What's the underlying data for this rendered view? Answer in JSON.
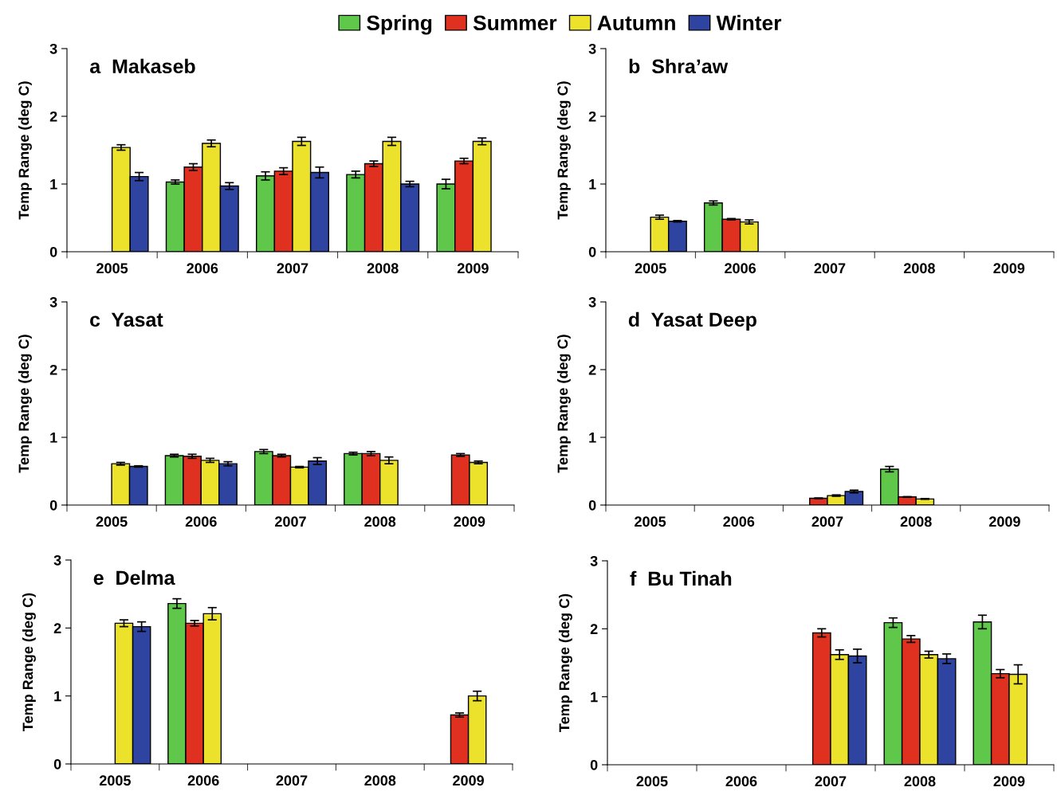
{
  "chart_data": [
    {
      "type": "bar",
      "title": "a  Makaseb",
      "ylabel": "Temp Range (deg C)",
      "legend": "top",
      "categories": [
        "2005",
        "2006",
        "2007",
        "2008",
        "2009"
      ],
      "ylim": [
        0,
        3
      ],
      "yticks": [
        0,
        1,
        2,
        3
      ],
      "series": [
        {
          "name": "Spring",
          "color": "#5fc84a",
          "values": [
            null,
            1.03,
            1.12,
            1.14,
            1.0
          ],
          "errors": [
            null,
            0.03,
            0.06,
            0.05,
            0.07
          ]
        },
        {
          "name": "Summer",
          "color": "#e03020",
          "values": [
            null,
            1.25,
            1.19,
            1.3,
            1.34
          ],
          "errors": [
            null,
            0.05,
            0.05,
            0.04,
            0.04
          ]
        },
        {
          "name": "Autumn",
          "color": "#ece22c",
          "values": [
            1.54,
            1.6,
            1.63,
            1.63,
            1.63
          ],
          "errors": [
            0.04,
            0.05,
            0.06,
            0.06,
            0.05
          ]
        },
        {
          "name": "Winter",
          "color": "#2e44a0",
          "values": [
            1.11,
            0.97,
            1.17,
            1.0,
            null
          ],
          "errors": [
            0.06,
            0.05,
            0.08,
            0.04,
            null
          ]
        }
      ]
    },
    {
      "type": "bar",
      "title": "b  Shra’aw",
      "ylabel": "Temp Range (deg C)",
      "categories": [
        "2005",
        "2006",
        "2007",
        "2008",
        "2009"
      ],
      "ylim": [
        0,
        3
      ],
      "yticks": [
        0,
        1,
        2,
        3
      ],
      "series": [
        {
          "color": "#5fc84a",
          "values": [
            null,
            0.72,
            null,
            null,
            null
          ],
          "errors": [
            null,
            0.03,
            null,
            null,
            null
          ]
        },
        {
          "color": "#e03020",
          "values": [
            null,
            0.48,
            null,
            null,
            null
          ],
          "errors": [
            null,
            0.01,
            null,
            null,
            null
          ]
        },
        {
          "color": "#ece22c",
          "values": [
            0.51,
            0.44,
            null,
            null,
            null
          ],
          "errors": [
            0.03,
            0.03,
            null,
            null,
            null
          ]
        },
        {
          "color": "#2e44a0",
          "values": [
            0.45,
            null,
            null,
            null,
            null
          ],
          "errors": [
            0.01,
            null,
            null,
            null,
            null
          ]
        }
      ]
    },
    {
      "type": "bar",
      "title": "c  Yasat",
      "ylabel": "Temp Range (deg C)",
      "categories": [
        "2005",
        "2006",
        "2007",
        "2008",
        "2009"
      ],
      "ylim": [
        0,
        3
      ],
      "yticks": [
        0,
        1,
        2,
        3
      ],
      "series": [
        {
          "color": "#5fc84a",
          "values": [
            null,
            0.73,
            0.79,
            0.76,
            null
          ],
          "errors": [
            null,
            0.02,
            0.03,
            0.02,
            null
          ]
        },
        {
          "color": "#e03020",
          "values": [
            null,
            0.72,
            0.73,
            0.76,
            0.74
          ],
          "errors": [
            null,
            0.03,
            0.02,
            0.03,
            0.02
          ]
        },
        {
          "color": "#ece22c",
          "values": [
            0.61,
            0.66,
            0.56,
            0.66,
            0.63
          ],
          "errors": [
            0.02,
            0.03,
            0.01,
            0.05,
            0.02
          ]
        },
        {
          "color": "#2e44a0",
          "values": [
            0.57,
            0.61,
            0.65,
            null,
            null
          ],
          "errors": [
            0.01,
            0.03,
            0.05,
            null,
            null
          ]
        }
      ]
    },
    {
      "type": "bar",
      "title": "d  Yasat Deep",
      "ylabel": "Temp Range (deg C)",
      "categories": [
        "2005",
        "2006",
        "2007",
        "2008",
        "2009"
      ],
      "ylim": [
        0,
        3
      ],
      "yticks": [
        0,
        1,
        2,
        3
      ],
      "series": [
        {
          "color": "#5fc84a",
          "values": [
            null,
            null,
            null,
            0.53,
            null
          ],
          "errors": [
            null,
            null,
            null,
            0.04,
            null
          ]
        },
        {
          "color": "#e03020",
          "values": [
            null,
            null,
            0.1,
            0.12,
            null
          ],
          "errors": [
            null,
            null,
            0.005,
            0.005,
            null
          ]
        },
        {
          "color": "#ece22c",
          "values": [
            null,
            null,
            0.14,
            0.09,
            null
          ],
          "errors": [
            null,
            null,
            0.01,
            0.005,
            null
          ]
        },
        {
          "color": "#2e44a0",
          "values": [
            null,
            null,
            0.2,
            null,
            null
          ],
          "errors": [
            null,
            null,
            0.02,
            null,
            null
          ]
        }
      ]
    },
    {
      "type": "bar",
      "title": "e  Delma",
      "ylabel": "Temp Range (deg C)",
      "categories": [
        "2005",
        "2006",
        "2007",
        "2008",
        "2009"
      ],
      "ylim": [
        0,
        3
      ],
      "yticks": [
        0,
        1,
        2,
        3
      ],
      "series": [
        {
          "color": "#5fc84a",
          "values": [
            null,
            2.36,
            null,
            null,
            null
          ],
          "errors": [
            null,
            0.07,
            null,
            null,
            null
          ]
        },
        {
          "color": "#e03020",
          "values": [
            null,
            2.07,
            null,
            null,
            0.72
          ],
          "errors": [
            null,
            0.04,
            null,
            null,
            0.03
          ]
        },
        {
          "color": "#ece22c",
          "values": [
            2.07,
            2.21,
            null,
            null,
            1.0
          ],
          "errors": [
            0.05,
            0.09,
            null,
            null,
            0.07
          ]
        },
        {
          "color": "#2e44a0",
          "values": [
            2.02,
            null,
            null,
            null,
            null
          ],
          "errors": [
            0.07,
            null,
            null,
            null,
            null
          ]
        }
      ]
    },
    {
      "type": "bar",
      "title": "f  Bu Tinah",
      "ylabel": "Temp Range (deg C)",
      "categories": [
        "2005",
        "2006",
        "2007",
        "2008",
        "2009"
      ],
      "ylim": [
        0,
        3
      ],
      "yticks": [
        0,
        1,
        2,
        3
      ],
      "series": [
        {
          "color": "#5fc84a",
          "values": [
            null,
            null,
            null,
            2.09,
            2.1
          ],
          "errors": [
            null,
            null,
            null,
            0.07,
            0.1
          ]
        },
        {
          "color": "#e03020",
          "values": [
            null,
            null,
            1.94,
            1.85,
            1.34
          ],
          "errors": [
            null,
            null,
            0.06,
            0.05,
            0.06
          ]
        },
        {
          "color": "#ece22c",
          "values": [
            null,
            null,
            1.62,
            1.62,
            1.33
          ],
          "errors": [
            null,
            null,
            0.07,
            0.05,
            0.14
          ]
        },
        {
          "color": "#2e44a0",
          "values": [
            null,
            null,
            1.6,
            1.56,
            null
          ],
          "errors": [
            null,
            null,
            0.1,
            0.07,
            null
          ]
        }
      ]
    }
  ]
}
